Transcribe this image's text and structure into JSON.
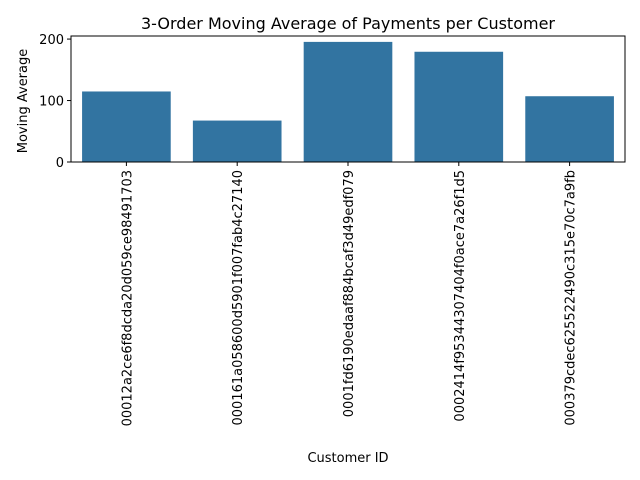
{
  "chart_data": {
    "type": "bar",
    "title": "3-Order Moving Average of Payments per Customer",
    "xlabel": "Customer ID",
    "ylabel": "Moving Average",
    "categories": [
      "00012a2ce6f8dcda20d059ce98491703",
      "000161a058600d5901f007fab4c27140",
      "0001fd6190edaaf884bcaf3d49edf079",
      "0002414f95344307404f0ace7a26f1d5",
      "000379cdec625522490c315e70c7a9fb"
    ],
    "values": [
      114.74,
      67.41,
      195.42,
      179.35,
      107.01
    ],
    "ylim": [
      0,
      205
    ],
    "yticks": [
      0,
      100,
      200
    ],
    "bar_color": "#3274a1",
    "grid": false,
    "legend": false
  }
}
